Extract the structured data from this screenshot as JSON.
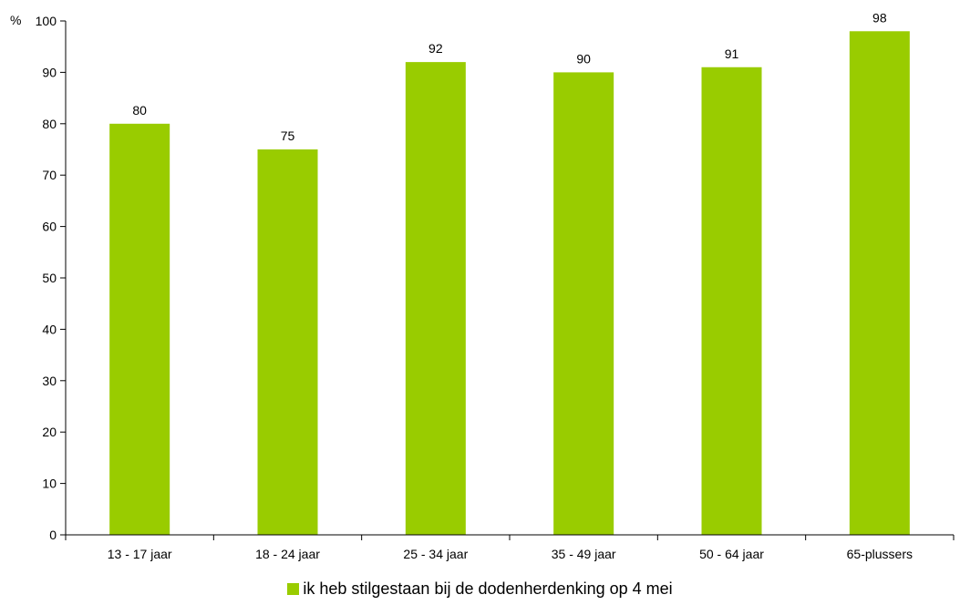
{
  "chart_data": {
    "type": "bar",
    "unit_label": "%",
    "categories": [
      "13 - 17 jaar",
      "18 - 24 jaar",
      "25 - 34 jaar",
      "35 - 49 jaar",
      "50 - 64 jaar",
      "65-plussers"
    ],
    "series": [
      {
        "name": "ik heb stilgestaan bij de dodenherdenking op 4 mei",
        "values": [
          80,
          75,
          92,
          90,
          91,
          98
        ],
        "color": "#99cc00"
      }
    ],
    "ylim": [
      0,
      100
    ],
    "yticks": [
      0,
      10,
      20,
      30,
      40,
      50,
      60,
      70,
      80,
      90,
      100
    ],
    "grid": false,
    "legend_position": "bottom-center",
    "data_labels": true
  }
}
